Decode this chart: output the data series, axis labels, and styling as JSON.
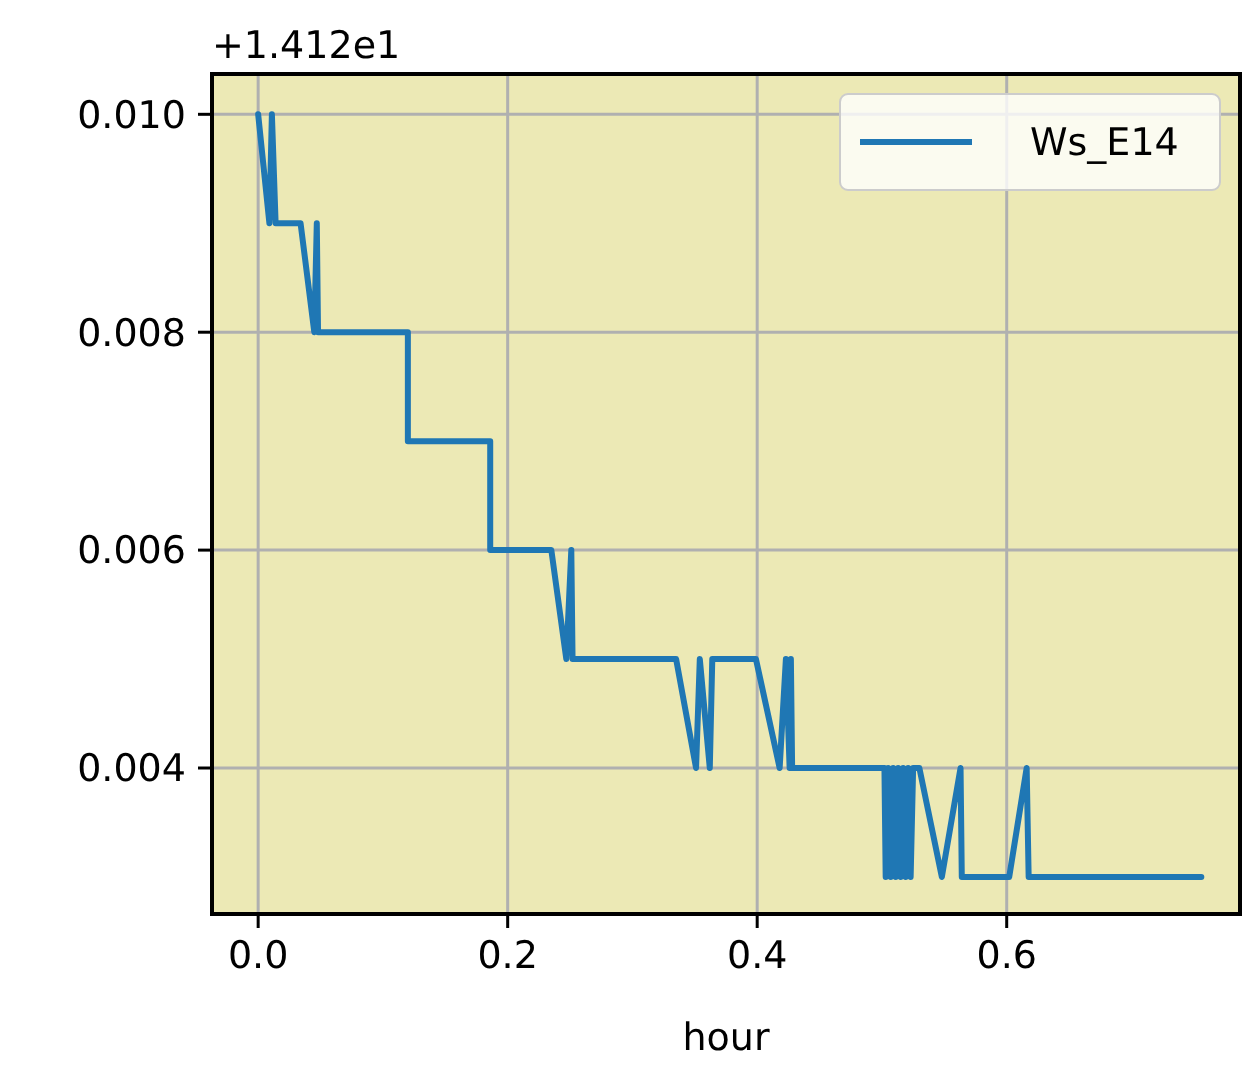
{
  "chart_data": {
    "type": "line",
    "xlabel": "hour",
    "annotations": [
      "+1.412e1"
    ],
    "xlim": [
      -0.037,
      0.787
    ],
    "ylim": [
      0.00266,
      0.01037
    ],
    "xticks": [
      {
        "value": 0,
        "label": "0.0"
      },
      {
        "value": 0.2,
        "label": "0.2"
      },
      {
        "value": 0.4,
        "label": "0.4"
      },
      {
        "value": 0.6,
        "label": "0.6"
      }
    ],
    "yticks": [
      {
        "value": 0.004,
        "label": "0.004"
      },
      {
        "value": 0.006,
        "label": "0.006"
      },
      {
        "value": 0.008,
        "label": "0.008"
      },
      {
        "value": 0.01,
        "label": "0.010"
      }
    ],
    "grid": true,
    "legend": "top right",
    "series": [
      {
        "name": "Ws_E14",
        "color": "#1f77b4",
        "x": [
          0,
          0.009,
          0.011,
          0.014,
          0.034,
          0.045,
          0.047,
          0.048,
          0.12,
          0.12,
          0.186,
          0.186,
          0.235,
          0.247,
          0.251,
          0.252,
          0.335,
          0.351,
          0.354,
          0.362,
          0.364,
          0.399,
          0.418,
          0.423,
          0.426,
          0.427,
          0.428,
          0.502,
          0.503,
          0.505,
          0.507,
          0.509,
          0.511,
          0.513,
          0.515,
          0.517,
          0.519,
          0.521,
          0.523,
          0.525,
          0.53,
          0.548,
          0.563,
          0.564,
          0.602,
          0.616,
          0.6176,
          0.756
        ],
        "values": [
          0.01,
          0.009,
          0.01,
          0.009,
          0.009,
          0.008,
          0.009,
          0.008,
          0.008,
          0.007,
          0.007,
          0.006,
          0.006,
          0.005,
          0.006,
          0.005,
          0.005,
          0.004,
          0.005,
          0.004,
          0.005,
          0.005,
          0.004,
          0.005,
          0.004,
          0.005,
          0.004,
          0.004,
          0.003,
          0.004,
          0.003,
          0.004,
          0.003,
          0.004,
          0.003,
          0.004,
          0.003,
          0.004,
          0.003,
          0.004,
          0.004,
          0.003,
          0.004,
          0.003,
          0.003,
          0.004,
          0.003,
          0.003
        ]
      }
    ]
  }
}
